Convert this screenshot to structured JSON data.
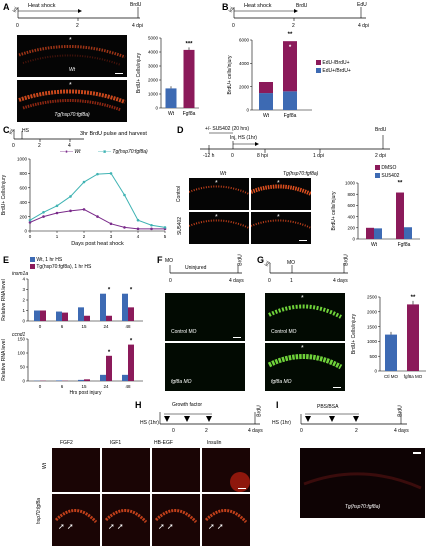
{
  "A": {
    "label": "A",
    "timeline": {
      "inj": "Inj",
      "hs": "Heat shock",
      "brdu": "BrdU",
      "ticks": [
        "0",
        "2",
        "4 dpi"
      ]
    },
    "micro": [
      {
        "caption": "Wt",
        "star": "*"
      },
      {
        "caption": "Tg(hsp70:fgf8a)",
        "star": "*"
      }
    ],
    "chart_data": {
      "type": "bar",
      "categories": [
        "Wt",
        "Fgf8a"
      ],
      "values": [
        1400,
        4150
      ],
      "errors": [
        150,
        180
      ],
      "ylabel": "BrdU+ Cells/injury",
      "ylim": [
        0,
        5000
      ],
      "yticks": [
        0,
        1000,
        2000,
        3000,
        4000,
        5000
      ],
      "annotations": [
        {
          "category": "Fgf8a",
          "text": "***"
        }
      ],
      "colors": [
        "#3d6ab3",
        "#8b1a5a"
      ]
    }
  },
  "B": {
    "label": "B",
    "timeline": {
      "inj": "Inj",
      "hs": "Heat shock",
      "brdu": "BrdU",
      "edu": "EdU",
      "ticks": [
        "0",
        "2",
        "4 dpi"
      ]
    },
    "chart_data": {
      "type": "bar",
      "stacked": true,
      "categories": [
        "Wt",
        "Fgf8a"
      ],
      "series": [
        {
          "name": "EdU-/BrdU+",
          "values": [
            950,
            4300
          ],
          "color": "#8b1a5a"
        },
        {
          "name": "EdU+/BrdU+",
          "values": [
            1450,
            1600
          ],
          "color": "#3d6ab3"
        }
      ],
      "ylabel": "BrdU+ cells/injury",
      "ylim": [
        0,
        6000
      ],
      "yticks": [
        0,
        2000,
        4000,
        6000
      ],
      "annotations": [
        {
          "text": "**"
        },
        {
          "text": "*"
        }
      ]
    }
  },
  "C": {
    "label": "C",
    "timeline": {
      "inj": "Inj",
      "hs": "HS",
      "note": "3hr BrdU pulse and harvest",
      "ticks": [
        "0",
        "2",
        "4"
      ]
    },
    "legend": [
      "Wt",
      "Tg(hsp70:fgf8a)"
    ],
    "chart_data": {
      "type": "line",
      "x": [
        0,
        0.5,
        1,
        1.5,
        2,
        2.5,
        3,
        3.5,
        4,
        4.5,
        5
      ],
      "series": [
        {
          "name": "Wt",
          "values": [
            120,
            200,
            250,
            280,
            300,
            200,
            100,
            50,
            30,
            30,
            30
          ],
          "color": "#7a2a8a"
        },
        {
          "name": "Tg(hsp70:fgf8a)",
          "values": [
            150,
            260,
            350,
            480,
            680,
            790,
            800,
            500,
            150,
            80,
            50
          ],
          "color": "#3fb3b3"
        }
      ],
      "xlabel": "Days post heat shock",
      "ylabel": "BrdU+ Cells/injury",
      "ylim": [
        0,
        1000
      ],
      "yticks": [
        0,
        200,
        400,
        600,
        800,
        1000
      ],
      "xticks": [
        0,
        1,
        2,
        3,
        4,
        5
      ]
    }
  },
  "D": {
    "label": "D",
    "drug": "+/- SU5402 (20 hrs)",
    "inj": "Inj, HS (1hr)",
    "brdu": "BrdU",
    "ticks": [
      "-12 h",
      "0",
      "8 hpi",
      "1 dpi",
      "2 dpi"
    ],
    "col_labels": [
      "Wt",
      "Tg(hsp70:fgf8a)"
    ],
    "row_labels": [
      "Control",
      "SU5402"
    ],
    "chart_data": {
      "type": "bar",
      "categories": [
        "Wt",
        "Fgf8a"
      ],
      "series": [
        {
          "name": "DMSO",
          "values": [
            200,
            830
          ],
          "color": "#8b1a5a"
        },
        {
          "name": "SU5402",
          "values": [
            190,
            210
          ],
          "color": "#3d6ab3"
        }
      ],
      "ylabel": "BrdU+ cells/injury",
      "ylim": [
        0,
        1000
      ],
      "yticks": [
        0,
        200,
        400,
        600,
        800,
        1000
      ],
      "annotations": [
        {
          "category": "Fgf8a",
          "text": "**"
        }
      ]
    }
  },
  "E": {
    "label": "E",
    "legend": [
      "Wt, 1 hr HS",
      "Tg(hsp70:fgf8a), 1 hr HS"
    ],
    "xlabel": "Hrs post injury",
    "gene1": {
      "name": "insm1a",
      "ylabel": "Relative RNA level",
      "yticks": [
        0,
        1,
        2,
        3,
        4
      ],
      "categories": [
        "0",
        "6",
        "15",
        "24",
        "48"
      ],
      "wt": [
        1,
        0.9,
        1.3,
        2.6,
        2.6
      ],
      "tg": [
        1,
        0.8,
        0.5,
        0.5,
        1.3
      ],
      "stars": [
        "",
        "",
        "",
        "*",
        "*"
      ]
    },
    "gene2": {
      "name": "ccnd1",
      "ylabel": "Relative RNA level",
      "yticks": [
        0,
        50,
        100,
        150
      ],
      "categories": [
        "0",
        "6",
        "15",
        "24",
        "48"
      ],
      "wt": [
        1,
        2,
        4,
        22,
        22
      ],
      "tg": [
        1,
        1,
        6,
        90,
        130
      ],
      "stars": [
        "",
        "",
        "",
        "*",
        "*"
      ]
    }
  },
  "F": {
    "label": "F",
    "timeline": {
      "mo": "MO",
      "cond": "Uninjured",
      "brdu": "BrdU",
      "ticks": [
        "0",
        "4 days"
      ]
    },
    "micro": [
      {
        "caption": "Control MO"
      },
      {
        "caption": "fgf8a MO"
      }
    ]
  },
  "G": {
    "label": "G",
    "timeline": {
      "inj": "Inj",
      "mo": "MO",
      "brdu": "BrdU",
      "ticks": [
        "0",
        "1",
        "4 days"
      ]
    },
    "micro": [
      {
        "caption": "Control MO",
        "star": "*"
      },
      {
        "caption": "fgf8a MO",
        "star": "*"
      }
    ],
    "chart_data": {
      "type": "bar",
      "categories": [
        "Ctl MO",
        "fgf8a MO"
      ],
      "values": [
        1230,
        2250
      ],
      "errors": [
        90,
        120
      ],
      "ylabel": "BrdU+ Cells/injury",
      "ylim": [
        0,
        2500
      ],
      "yticks": [
        0,
        500,
        1000,
        1500,
        2000,
        2500
      ],
      "annotations": [
        {
          "category": "fgf8a MO",
          "text": "**"
        }
      ],
      "colors": [
        "#3d6ab3",
        "#8b1a5a"
      ]
    }
  },
  "H": {
    "label": "H",
    "timeline": {
      "hs": "HS (1hr)",
      "gf": "Growth factor",
      "brdu": "BrdU",
      "ticks": [
        "0",
        "2",
        "4 days"
      ]
    },
    "cols": [
      "FGF2",
      "IGF1",
      "HB-EGF",
      "Insulin"
    ],
    "rows": [
      "Wt",
      "hsp70:fgf8a"
    ]
  },
  "I": {
    "label": "I",
    "timeline": {
      "hs": "HS (1hr)",
      "agent": "PBS/BSA",
      "brdu": "BrdU",
      "ticks": [
        "0",
        "2",
        "4 days"
      ]
    },
    "caption": "Tg(hsp70:fgf8a)"
  }
}
